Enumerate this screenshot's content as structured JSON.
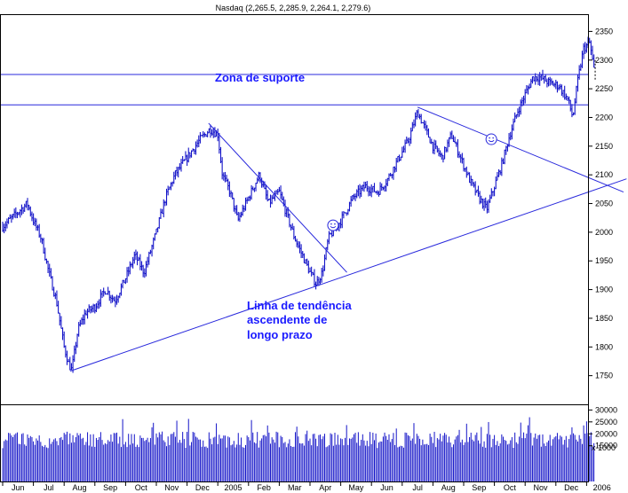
{
  "chart_data": {
    "type": "line",
    "title": "Nasdaq (2,265.5, 2,285.9, 2,264.1, 2,279.6)",
    "price_axis": {
      "ylim": [
        1700,
        2380
      ],
      "ticks": [
        1750,
        1800,
        1850,
        1900,
        1950,
        2000,
        2050,
        2100,
        2150,
        2200,
        2250,
        2300,
        2350
      ],
      "tick_labels": [
        "1750",
        "1800",
        "1850",
        "1900",
        "1950",
        "2000",
        "2050",
        "2100",
        "2150",
        "2200",
        "2250",
        "2300",
        "2350"
      ]
    },
    "volume_axis": {
      "ylim": [
        0,
        32000
      ],
      "ticks": [
        15000,
        20000,
        25000,
        30000
      ],
      "tick_labels": [
        "15000",
        "20000",
        "25000",
        "30000"
      ],
      "multiplier_label": "x 1000"
    },
    "x_axis": {
      "months": [
        "Jun",
        "Jul",
        "Aug",
        "Sep",
        "Oct",
        "Nov",
        "Dec",
        "2005",
        "Feb",
        "Mar",
        "Apr",
        "May",
        "Jun",
        "Jul",
        "Aug",
        "Sep",
        "Oct",
        "Nov",
        "Dec",
        "2006"
      ],
      "start_month": 6,
      "start_year": 2004,
      "n_months": 20
    },
    "price_series": [
      {
        "t": 0.0,
        "v": 2010
      },
      {
        "t": 0.4,
        "v": 2030
      },
      {
        "t": 0.8,
        "v": 2050
      },
      {
        "t": 1.0,
        "v": 2020
      },
      {
        "t": 1.25,
        "v": 1990
      },
      {
        "t": 1.5,
        "v": 1930
      },
      {
        "t": 1.75,
        "v": 1880
      },
      {
        "t": 2.0,
        "v": 1800
      },
      {
        "t": 2.15,
        "v": 1770
      },
      {
        "t": 2.25,
        "v": 1760
      },
      {
        "t": 2.45,
        "v": 1830
      },
      {
        "t": 2.7,
        "v": 1860
      },
      {
        "t": 3.0,
        "v": 1870
      },
      {
        "t": 3.35,
        "v": 1900
      },
      {
        "t": 3.65,
        "v": 1880
      },
      {
        "t": 4.0,
        "v": 1920
      },
      {
        "t": 4.3,
        "v": 1960
      },
      {
        "t": 4.6,
        "v": 1930
      },
      {
        "t": 5.0,
        "v": 2000
      },
      {
        "t": 5.3,
        "v": 2060
      },
      {
        "t": 5.6,
        "v": 2100
      },
      {
        "t": 6.0,
        "v": 2130
      },
      {
        "t": 6.4,
        "v": 2160
      },
      {
        "t": 6.75,
        "v": 2180
      },
      {
        "t": 7.0,
        "v": 2170
      },
      {
        "t": 7.15,
        "v": 2100
      },
      {
        "t": 7.4,
        "v": 2070
      },
      {
        "t": 7.65,
        "v": 2020
      },
      {
        "t": 8.0,
        "v": 2060
      },
      {
        "t": 8.35,
        "v": 2100
      },
      {
        "t": 8.65,
        "v": 2050
      },
      {
        "t": 9.0,
        "v": 2070
      },
      {
        "t": 9.25,
        "v": 2030
      },
      {
        "t": 9.5,
        "v": 1990
      },
      {
        "t": 9.75,
        "v": 1960
      },
      {
        "t": 10.0,
        "v": 1930
      },
      {
        "t": 10.2,
        "v": 1910
      },
      {
        "t": 10.4,
        "v": 1930
      },
      {
        "t": 10.6,
        "v": 1990
      },
      {
        "t": 11.0,
        "v": 2020
      },
      {
        "t": 11.4,
        "v": 2060
      },
      {
        "t": 11.8,
        "v": 2080
      },
      {
        "t": 12.2,
        "v": 2070
      },
      {
        "t": 12.5,
        "v": 2090
      },
      {
        "t": 12.9,
        "v": 2130
      },
      {
        "t": 13.2,
        "v": 2160
      },
      {
        "t": 13.5,
        "v": 2210
      },
      {
        "t": 13.75,
        "v": 2180
      },
      {
        "t": 14.0,
        "v": 2150
      },
      {
        "t": 14.3,
        "v": 2130
      },
      {
        "t": 14.6,
        "v": 2170
      },
      {
        "t": 14.9,
        "v": 2130
      },
      {
        "t": 15.2,
        "v": 2090
      },
      {
        "t": 15.5,
        "v": 2060
      },
      {
        "t": 15.75,
        "v": 2040
      },
      {
        "t": 16.0,
        "v": 2080
      },
      {
        "t": 16.25,
        "v": 2120
      },
      {
        "t": 16.5,
        "v": 2170
      },
      {
        "t": 16.75,
        "v": 2210
      },
      {
        "t": 17.0,
        "v": 2240
      },
      {
        "t": 17.25,
        "v": 2270
      },
      {
        "t": 17.5,
        "v": 2270
      },
      {
        "t": 17.8,
        "v": 2260
      },
      {
        "t": 18.1,
        "v": 2255
      },
      {
        "t": 18.4,
        "v": 2230
      },
      {
        "t": 18.55,
        "v": 2200
      },
      {
        "t": 18.7,
        "v": 2260
      },
      {
        "t": 18.9,
        "v": 2320
      },
      {
        "t": 19.1,
        "v": 2330
      },
      {
        "t": 19.25,
        "v": 2280
      }
    ],
    "volume_avg": 17500,
    "volume_max": 29000,
    "support_zone": {
      "upper": 2275,
      "lower": 2222
    },
    "trendlines": [
      {
        "from": {
          "t": 2.2,
          "v": 1758
        },
        "to": {
          "t": 20.3,
          "v": 2093
        }
      },
      {
        "from": {
          "t": 6.7,
          "v": 2190
        },
        "to": {
          "t": 11.2,
          "v": 1930
        }
      },
      {
        "from": {
          "t": 13.5,
          "v": 2218
        },
        "to": {
          "t": 20.2,
          "v": 2070
        }
      }
    ],
    "smileys": [
      {
        "t": 10.75,
        "v": 2012
      },
      {
        "t": 15.9,
        "v": 2162
      }
    ],
    "annotations": {
      "support": "Zona de suporte",
      "trend_lines": [
        "Linha de tendência",
        "ascendente de",
        "longo prazo"
      ]
    },
    "colors": {
      "price": "#1414c8",
      "volume": "#1414c8",
      "line": "#2828dc",
      "annotation": "#1a1aff"
    },
    "grid": false
  }
}
